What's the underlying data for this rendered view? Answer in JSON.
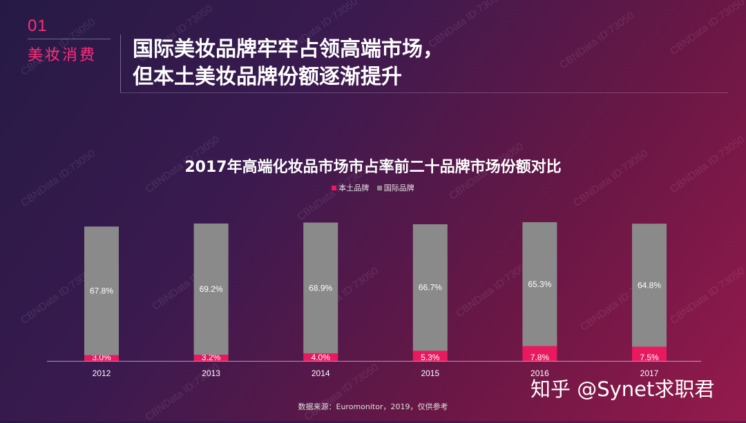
{
  "section": {
    "number": "01",
    "name": "美妆消费"
  },
  "headline": {
    "line1": "国际美妆品牌牢牢占领高端市场，",
    "line2": "但本土美妆品牌份额逐渐提升"
  },
  "watermark": "CBNData ID:73050",
  "source": "数据来源：Euromonitor，2019，仅供参考",
  "credit": "知乎 @Synet求职君",
  "colors": {
    "accent": "#ff2e7a",
    "local": "#e8195f",
    "intl": "#8a8a8a"
  },
  "chart_data": {
    "type": "bar",
    "stacked": true,
    "title": "2017年高端化妆品市场市占率前二十品牌市场份额对比",
    "categories": [
      "2012",
      "2013",
      "2014",
      "2015",
      "2016",
      "2017"
    ],
    "series": [
      {
        "name": "本土品牌",
        "values": [
          3.0,
          3.2,
          4.0,
          5.3,
          7.8,
          7.5
        ],
        "labels": [
          "3.0%",
          "3.2%",
          "4.0%",
          "5.3%",
          "7.8%",
          "7.5%"
        ]
      },
      {
        "name": "国际品牌",
        "values": [
          67.8,
          69.2,
          68.9,
          66.7,
          65.3,
          64.8
        ],
        "labels": [
          "67.8%",
          "69.2%",
          "68.9%",
          "66.7%",
          "65.3%",
          "64.8%"
        ]
      }
    ],
    "ylim": [
      0,
      80
    ],
    "grid": false,
    "legend": "top-center"
  }
}
